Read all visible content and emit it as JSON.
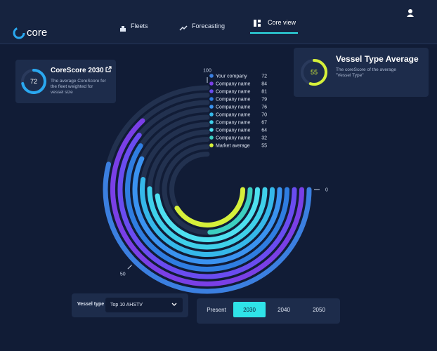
{
  "header": {
    "logo": "core",
    "nav": [
      "Fleets",
      "Forecasting",
      "Core view"
    ]
  },
  "cards": [
    {
      "title": "CoreScore 2030",
      "value": 72,
      "description": "The average CoreScore for the fleet weighted for vessel size"
    },
    {
      "title": "Vessel Type Average",
      "value": 55,
      "description": "The coreScore of the average \"Vessel Type\""
    }
  ],
  "chart_data": {
    "type": "radial-bar",
    "categories": [
      "Your company",
      "Company name",
      "Company name",
      "Company name",
      "Company name",
      "Company name",
      "Company name",
      "Company name",
      "Company name",
      "Market average"
    ],
    "values": [
      72,
      84,
      81,
      79,
      76,
      70,
      67,
      64,
      32,
      55
    ],
    "colors": [
      "#3b7fe0",
      "#7a3fe6",
      "#6a4cf0",
      "#2f7de1",
      "#3a92f0",
      "#35b8ea",
      "#3fd0ea",
      "#4ee0f0",
      "#3ccfc0",
      "#d6f03a"
    ],
    "ylim": [
      0,
      100
    ],
    "yticks": [
      0,
      50,
      100
    ]
  },
  "controls": {
    "vessel_type_label": "Vessel type",
    "vessel_type_value": "Top 10 AHSTV",
    "periods": [
      "Present",
      "2030",
      "2040",
      "2050"
    ]
  }
}
